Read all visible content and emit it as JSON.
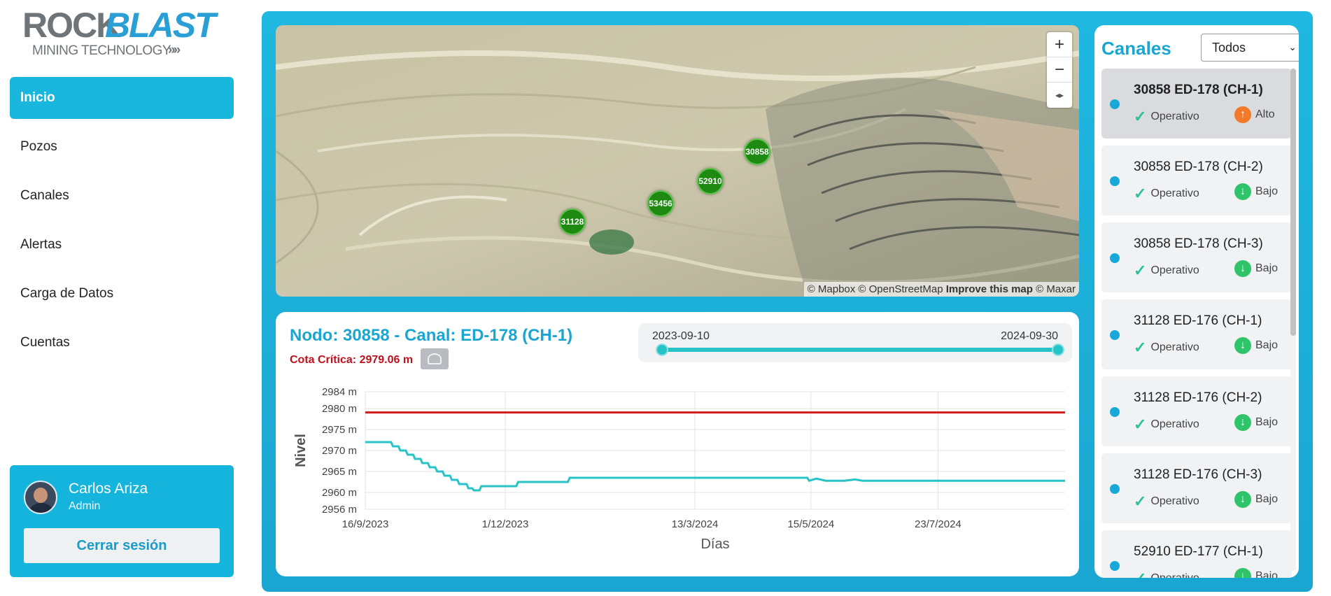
{
  "logo": {
    "word1": "ROCK",
    "word2": "BLAST",
    "tagline": "MINING TECHNOLOGY",
    "chevrons": "»»"
  },
  "nav": [
    {
      "label": "Inicio",
      "active": true
    },
    {
      "label": "Pozos"
    },
    {
      "label": "Canales"
    },
    {
      "label": "Alertas"
    },
    {
      "label": "Carga de Datos"
    },
    {
      "label": "Cuentas"
    }
  ],
  "user": {
    "name": "Carlos Ariza",
    "role": "Admin",
    "logout_label": "Cerrar sesión"
  },
  "map": {
    "markers": [
      "30858",
      "52910",
      "53456",
      "31128"
    ],
    "zoom_in": "+",
    "zoom_out": "−",
    "compass": "◂▸",
    "attribution_1": "© Mapbox © OpenStreetMap",
    "attribution_link": "Improve this map",
    "attribution_2": "© Maxar"
  },
  "chart_panel": {
    "title": "Nodo: 30858 - Canal: ED-178 (CH-1)",
    "cota_label": "Cota Crítica: 2979.06 m",
    "range_start": "2023-09-10",
    "range_end": "2024-09-30"
  },
  "chart_data": {
    "type": "line",
    "xlabel": "Días",
    "ylabel": "Nivel",
    "ylim": [
      2956,
      2984
    ],
    "yticks": [
      {
        "v": 2984,
        "label": "2984 m"
      },
      {
        "v": 2980,
        "label": "2980 m"
      },
      {
        "v": 2975,
        "label": "2975 m"
      },
      {
        "v": 2970,
        "label": "2970 m"
      },
      {
        "v": 2965,
        "label": "2965 m"
      },
      {
        "v": 2960,
        "label": "2960 m"
      },
      {
        "v": 2956,
        "label": "2956 m"
      }
    ],
    "xlim": [
      0,
      380
    ],
    "xticks": [
      {
        "v": 0,
        "label": "16/9/2023"
      },
      {
        "v": 76,
        "label": "1/12/2023"
      },
      {
        "v": 179,
        "label": "13/3/2024"
      },
      {
        "v": 242,
        "label": "15/5/2024"
      },
      {
        "v": 311,
        "label": "23/7/2024"
      }
    ],
    "series": [
      {
        "name": "Cota Crítica",
        "color": "#d11a1a",
        "x": [
          0,
          380
        ],
        "y": [
          2979.06,
          2979.06
        ]
      },
      {
        "name": "Nivel",
        "color": "#27c3c7",
        "x": [
          0,
          14,
          15,
          18,
          19,
          22,
          23,
          26,
          27,
          30,
          31,
          34,
          35,
          38,
          39,
          42,
          43,
          46,
          47,
          50,
          51,
          55,
          56,
          58,
          59,
          62,
          63,
          70,
          71,
          82,
          83,
          110,
          111,
          240,
          241,
          245,
          250,
          260,
          266,
          270,
          380
        ],
        "y": [
          2972,
          2972,
          2971,
          2971,
          2970,
          2970,
          2969,
          2969,
          2968,
          2968,
          2967,
          2967,
          2966,
          2966,
          2965,
          2965,
          2964,
          2964,
          2963,
          2963,
          2962,
          2962,
          2961,
          2961,
          2960.5,
          2960.5,
          2961.5,
          2961.5,
          2961.5,
          2961.5,
          2962.5,
          2962.5,
          2963.5,
          2963.5,
          2962.8,
          2963.3,
          2962.8,
          2962.8,
          2963.1,
          2962.8,
          2962.8
        ]
      }
    ]
  },
  "channels": {
    "title": "Canales",
    "filter_value": "Todos",
    "items": [
      {
        "name": "30858 ED-178 (CH-1)",
        "status": "Operativo",
        "level": "Alto",
        "level_color": "#f07a2a",
        "arrow": "↑",
        "selected": true
      },
      {
        "name": "30858 ED-178 (CH-2)",
        "status": "Operativo",
        "level": "Bajo",
        "level_color": "#2fc36a",
        "arrow": "↓"
      },
      {
        "name": "30858 ED-178 (CH-3)",
        "status": "Operativo",
        "level": "Bajo",
        "level_color": "#2fc36a",
        "arrow": "↓"
      },
      {
        "name": "31128 ED-176 (CH-1)",
        "status": "Operativo",
        "level": "Bajo",
        "level_color": "#2fc36a",
        "arrow": "↓"
      },
      {
        "name": "31128 ED-176 (CH-2)",
        "status": "Operativo",
        "level": "Bajo",
        "level_color": "#2fc36a",
        "arrow": "↓"
      },
      {
        "name": "31128 ED-176 (CH-3)",
        "status": "Operativo",
        "level": "Bajo",
        "level_color": "#2fc36a",
        "arrow": "↓"
      },
      {
        "name": "52910 ED-177 (CH-1)",
        "status": "Operativo",
        "level": "Bajo",
        "level_color": "#2fc36a",
        "arrow": "↓"
      }
    ]
  }
}
